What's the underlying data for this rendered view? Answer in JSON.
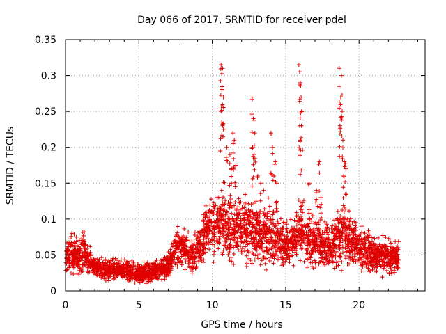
{
  "chart_data": {
    "type": "scatter",
    "title": "Day 066 of 2017, SRMTID for receiver pdel",
    "xlabel": "GPS time / hours",
    "ylabel": "SRMTID / TECUs",
    "xlim": [
      0,
      24.5
    ],
    "ylim": [
      0,
      0.35
    ],
    "x_ticks": [
      0,
      5,
      10,
      15,
      20
    ],
    "y_ticks": [
      0,
      0.05,
      0.1,
      0.15,
      0.2,
      0.25,
      0.3,
      0.35
    ],
    "x_tick_labels": [
      "0",
      "5",
      "10",
      "15",
      "20"
    ],
    "y_tick_labels": [
      "0",
      "0.05",
      "0.1",
      "0.15",
      "0.2",
      "0.25",
      "0.3",
      "0.35"
    ],
    "grid": true,
    "marker": "+",
    "marker_color": "#e00000",
    "series": [
      {
        "name": "SRMTID",
        "profile": [
          [
            0.0,
            0.04,
            0.012
          ],
          [
            0.3,
            0.055,
            0.018
          ],
          [
            0.6,
            0.05,
            0.018
          ],
          [
            0.9,
            0.045,
            0.015
          ],
          [
            1.2,
            0.06,
            0.02
          ],
          [
            1.5,
            0.045,
            0.012
          ],
          [
            2.0,
            0.033,
            0.01
          ],
          [
            3.0,
            0.03,
            0.009
          ],
          [
            4.0,
            0.028,
            0.009
          ],
          [
            5.0,
            0.025,
            0.009
          ],
          [
            6.0,
            0.027,
            0.01
          ],
          [
            7.0,
            0.035,
            0.012
          ],
          [
            7.5,
            0.06,
            0.014
          ],
          [
            8.0,
            0.06,
            0.016
          ],
          [
            8.5,
            0.05,
            0.015
          ],
          [
            9.0,
            0.055,
            0.018
          ],
          [
            9.5,
            0.085,
            0.025
          ],
          [
            10.0,
            0.085,
            0.025
          ],
          [
            10.5,
            0.095,
            0.03
          ],
          [
            11.0,
            0.09,
            0.03
          ],
          [
            11.5,
            0.085,
            0.028
          ],
          [
            12.0,
            0.09,
            0.03
          ],
          [
            12.5,
            0.085,
            0.03
          ],
          [
            13.0,
            0.08,
            0.028
          ],
          [
            13.5,
            0.075,
            0.025
          ],
          [
            14.0,
            0.08,
            0.028
          ],
          [
            14.5,
            0.07,
            0.022
          ],
          [
            15.0,
            0.065,
            0.02
          ],
          [
            15.5,
            0.07,
            0.022
          ],
          [
            16.0,
            0.085,
            0.03
          ],
          [
            16.5,
            0.07,
            0.025
          ],
          [
            17.0,
            0.07,
            0.025
          ],
          [
            17.5,
            0.065,
            0.022
          ],
          [
            18.0,
            0.06,
            0.02
          ],
          [
            18.5,
            0.075,
            0.025
          ],
          [
            19.0,
            0.08,
            0.028
          ],
          [
            19.5,
            0.07,
            0.022
          ],
          [
            20.0,
            0.06,
            0.02
          ],
          [
            20.5,
            0.055,
            0.018
          ],
          [
            21.0,
            0.05,
            0.017
          ],
          [
            21.5,
            0.05,
            0.016
          ],
          [
            22.0,
            0.05,
            0.016
          ],
          [
            22.7,
            0.045,
            0.015
          ]
        ],
        "spikes": [
          [
            10.6,
            0.315
          ],
          [
            10.7,
            0.31
          ],
          [
            10.65,
            0.28
          ],
          [
            10.75,
            0.27
          ],
          [
            10.6,
            0.25
          ],
          [
            10.7,
            0.23
          ],
          [
            11.0,
            0.2
          ],
          [
            11.2,
            0.19
          ],
          [
            11.4,
            0.22
          ],
          [
            11.5,
            0.21
          ],
          [
            11.3,
            0.17
          ],
          [
            11.6,
            0.175
          ],
          [
            12.7,
            0.27
          ],
          [
            12.8,
            0.24
          ],
          [
            12.9,
            0.22
          ],
          [
            12.75,
            0.2
          ],
          [
            12.85,
            0.19
          ],
          [
            13.1,
            0.16
          ],
          [
            13.3,
            0.15
          ],
          [
            13.5,
            0.14
          ],
          [
            14.0,
            0.22
          ],
          [
            14.1,
            0.2
          ],
          [
            14.3,
            0.18
          ],
          [
            14.2,
            0.16
          ],
          [
            14.4,
            0.15
          ],
          [
            15.9,
            0.315
          ],
          [
            16.0,
            0.29
          ],
          [
            16.05,
            0.27
          ],
          [
            16.1,
            0.25
          ],
          [
            15.95,
            0.23
          ],
          [
            16.0,
            0.21
          ],
          [
            16.6,
            0.15
          ],
          [
            17.1,
            0.14
          ],
          [
            17.3,
            0.18
          ],
          [
            17.4,
            0.13
          ],
          [
            18.65,
            0.31
          ],
          [
            18.8,
            0.3
          ],
          [
            18.75,
            0.27
          ],
          [
            18.85,
            0.25
          ],
          [
            18.7,
            0.23
          ],
          [
            18.9,
            0.21
          ],
          [
            19.0,
            0.18
          ],
          [
            19.1,
            0.17
          ],
          [
            18.95,
            0.16
          ]
        ]
      }
    ]
  }
}
